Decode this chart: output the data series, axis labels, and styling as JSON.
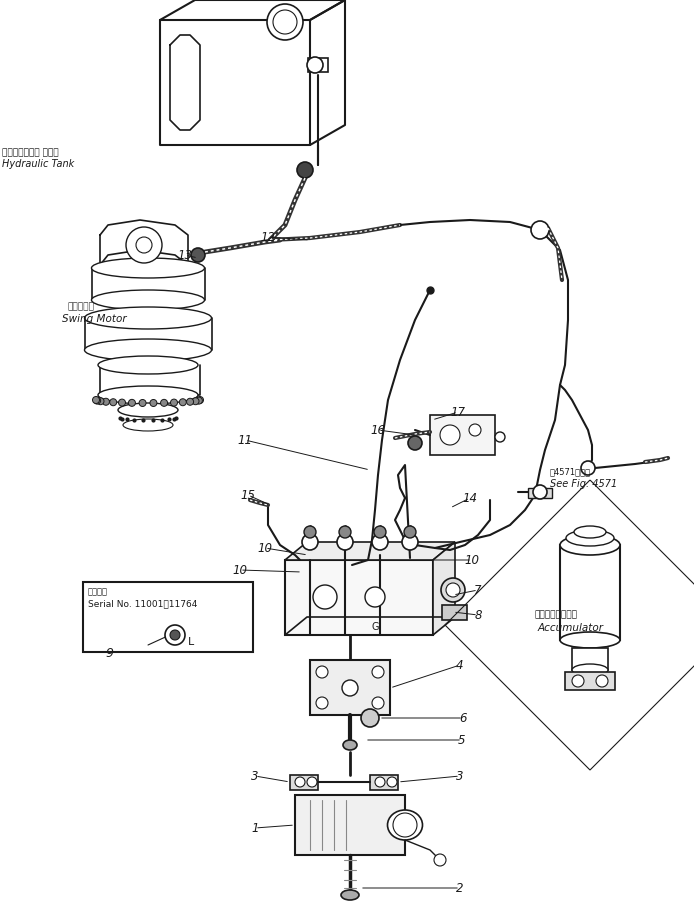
{
  "bg_color": "#ffffff",
  "line_color": "#1a1a1a",
  "fig_width": 6.94,
  "fig_height": 9.13,
  "dpi": 100,
  "labels": {
    "hydraulic_tank_ja": "ハイドロリック タンク",
    "hydraulic_tank_en": "Hydraulic Tank",
    "swing_motor_ja": "旋回モータ",
    "swing_motor_en": "Swing Motor",
    "serial_no_line1": "適用号续",
    "serial_no_line2": "Serial No. 11001～11764",
    "see_fig_ja": "第4571図参照",
    "see_fig_en": "See Fig. 4571",
    "accumulator_ja": "アキュームレータ",
    "accumulator_en": "Accumulator"
  }
}
